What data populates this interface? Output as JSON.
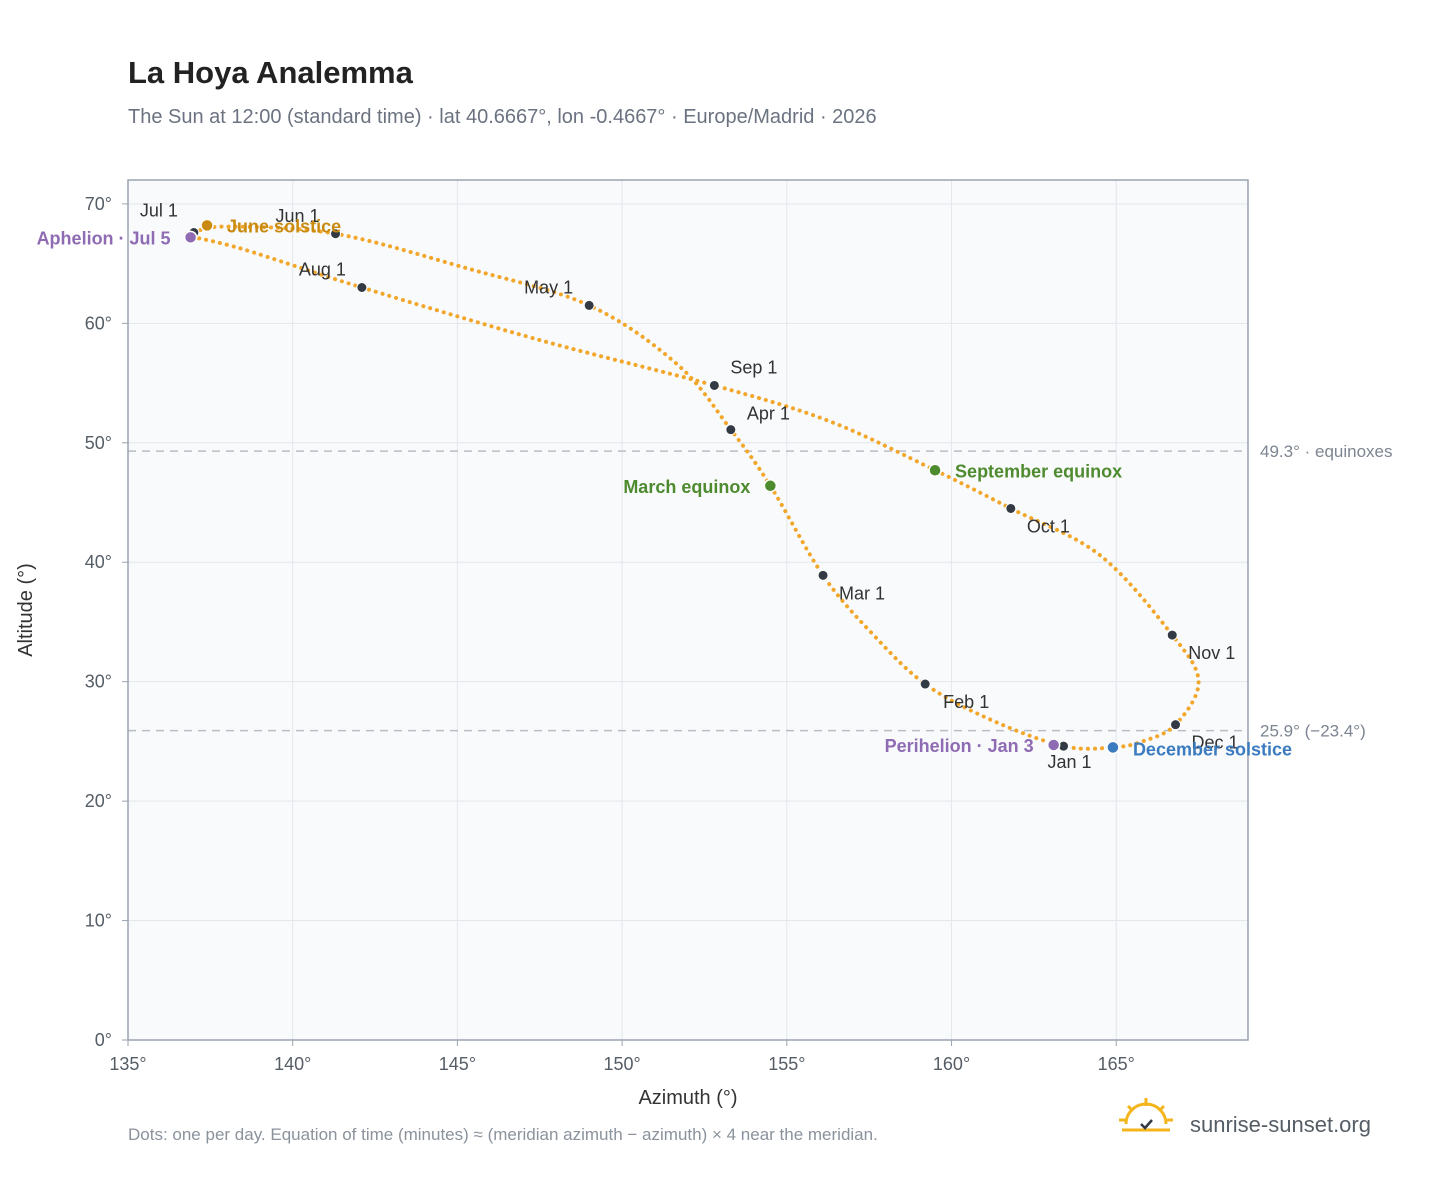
{
  "header": {
    "title": "La Hoya Analemma",
    "subtitle": "The Sun at 12:00 (standard time) · lat 40.6667°, lon -0.4667° · Europe/Madrid · 2026"
  },
  "footer": {
    "note": "Dots: one per day. Equation of time (minutes) ≈ (meridian azimuth − azimuth) × 4 near the meridian.",
    "brand": "sunrise-sunset.org"
  },
  "colors": {
    "path": "#f2a62a",
    "month_dot": "#333a44",
    "june_solstice": "#c98a10",
    "december_solstice": "#3b7bbf",
    "equinox": "#4e8a2e",
    "apsis": "#8e6bb3",
    "plot_bg": "#f8fafc",
    "grid": "#e3e7ec",
    "ref_line": "#b9bec5"
  },
  "chart_data": {
    "type": "scatter",
    "title": "La Hoya Analemma",
    "xlabel": "Azimuth (°)",
    "ylabel": "Altitude (°)",
    "xlim": [
      135,
      169
    ],
    "ylim": [
      0,
      72
    ],
    "x_ticks": [
      135,
      140,
      145,
      150,
      155,
      160,
      165
    ],
    "x_tick_labels": [
      "135°",
      "140°",
      "145°",
      "150°",
      "155°",
      "160°",
      "165°"
    ],
    "y_ticks": [
      0,
      10,
      20,
      30,
      40,
      50,
      60,
      70
    ],
    "y_tick_labels": [
      "0°",
      "10°",
      "20°",
      "30°",
      "40°",
      "50°",
      "60°",
      "70°"
    ],
    "grid": true,
    "analemma_path": [
      [
        163.4,
        24.6
      ],
      [
        161.2,
        26.8
      ],
      [
        159.2,
        29.8
      ],
      [
        157.6,
        34.0
      ],
      [
        156.1,
        38.9
      ],
      [
        154.5,
        46.4
      ],
      [
        153.3,
        51.1
      ],
      [
        151.7,
        56.5
      ],
      [
        149.0,
        61.5
      ],
      [
        145.3,
        64.6
      ],
      [
        141.3,
        67.5
      ],
      [
        138.0,
        68.1
      ],
      [
        137.0,
        67.6
      ],
      [
        136.9,
        67.3
      ],
      [
        138.5,
        66.2
      ],
      [
        142.1,
        63.0
      ],
      [
        147.5,
        58.6
      ],
      [
        152.8,
        54.8
      ],
      [
        156.3,
        51.8
      ],
      [
        159.5,
        47.7
      ],
      [
        161.8,
        44.5
      ],
      [
        164.5,
        40.6
      ],
      [
        166.7,
        33.9
      ],
      [
        167.5,
        30.0
      ],
      [
        166.8,
        26.4
      ],
      [
        165.8,
        25.0
      ],
      [
        164.9,
        24.5
      ],
      [
        163.4,
        24.6
      ]
    ],
    "month_markers": [
      {
        "label": "Jan 1",
        "x": 163.4,
        "y": 24.6
      },
      {
        "label": "Feb 1",
        "x": 159.2,
        "y": 29.8
      },
      {
        "label": "Mar 1",
        "x": 156.1,
        "y": 38.9
      },
      {
        "label": "Apr 1",
        "x": 153.3,
        "y": 51.1
      },
      {
        "label": "May 1",
        "x": 149.0,
        "y": 61.5
      },
      {
        "label": "Jun 1",
        "x": 141.3,
        "y": 67.5
      },
      {
        "label": "Jul 1",
        "x": 137.0,
        "y": 67.6
      },
      {
        "label": "Aug 1",
        "x": 142.1,
        "y": 63.0
      },
      {
        "label": "Sep 1",
        "x": 152.8,
        "y": 54.8
      },
      {
        "label": "Oct 1",
        "x": 161.8,
        "y": 44.5
      },
      {
        "label": "Nov 1",
        "x": 166.7,
        "y": 33.9
      },
      {
        "label": "Dec 1",
        "x": 166.8,
        "y": 26.4
      }
    ],
    "events": [
      {
        "label": "June solstice",
        "x": 137.4,
        "y": 68.2,
        "color": "june_solstice"
      },
      {
        "label": "Aphelion · Jul 5",
        "x": 136.9,
        "y": 67.2,
        "color": "apsis"
      },
      {
        "label": "March equinox",
        "x": 154.5,
        "y": 46.4,
        "color": "equinox"
      },
      {
        "label": "September equinox",
        "x": 159.5,
        "y": 47.7,
        "color": "equinox"
      },
      {
        "label": "Perihelion · Jan 3",
        "x": 163.1,
        "y": 24.7,
        "color": "apsis"
      },
      {
        "label": "December solstice",
        "x": 164.9,
        "y": 24.5,
        "color": "december_solstice"
      }
    ],
    "reference_lines": [
      {
        "y": 49.3,
        "label": "49.3° · equinoxes"
      },
      {
        "y": 25.9,
        "label": "25.9° (−23.4°)"
      }
    ]
  }
}
